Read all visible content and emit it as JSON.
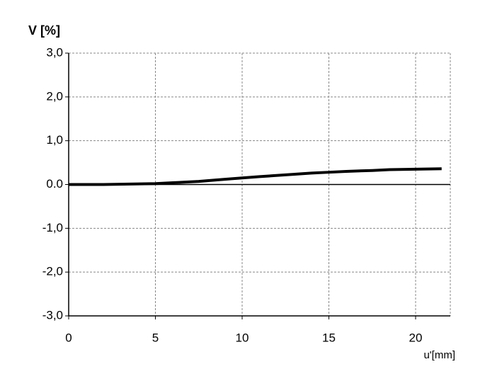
{
  "chart_data": {
    "type": "line",
    "y_label": "V [%]",
    "x_label": "u'[mm]",
    "x": [
      0,
      2,
      3.5,
      5,
      6,
      7.5,
      9,
      10,
      11,
      12.5,
      14,
      15,
      16,
      17.5,
      18.5,
      20,
      21.5
    ],
    "series": [
      {
        "name": "V",
        "color": "#000000",
        "values": [
          0,
          0,
          0.01,
          0.02,
          0.04,
          0.07,
          0.12,
          0.15,
          0.18,
          0.22,
          0.26,
          0.28,
          0.3,
          0.32,
          0.34,
          0.35,
          0.36
        ]
      }
    ],
    "xlim": [
      0,
      22
    ],
    "xticks": [
      0,
      5,
      10,
      15,
      20
    ],
    "ylim": [
      -3,
      3
    ],
    "yticks": [
      {
        "value": -3,
        "label": "-3,0"
      },
      {
        "value": -2,
        "label": "-2,0"
      },
      {
        "value": -1,
        "label": "-1,0"
      },
      {
        "value": 0,
        "label": "0.0"
      },
      {
        "value": 1,
        "label": "1,0"
      },
      {
        "value": 2,
        "label": "2,0"
      },
      {
        "value": 3,
        "label": "3,0"
      }
    ],
    "grid": true
  }
}
